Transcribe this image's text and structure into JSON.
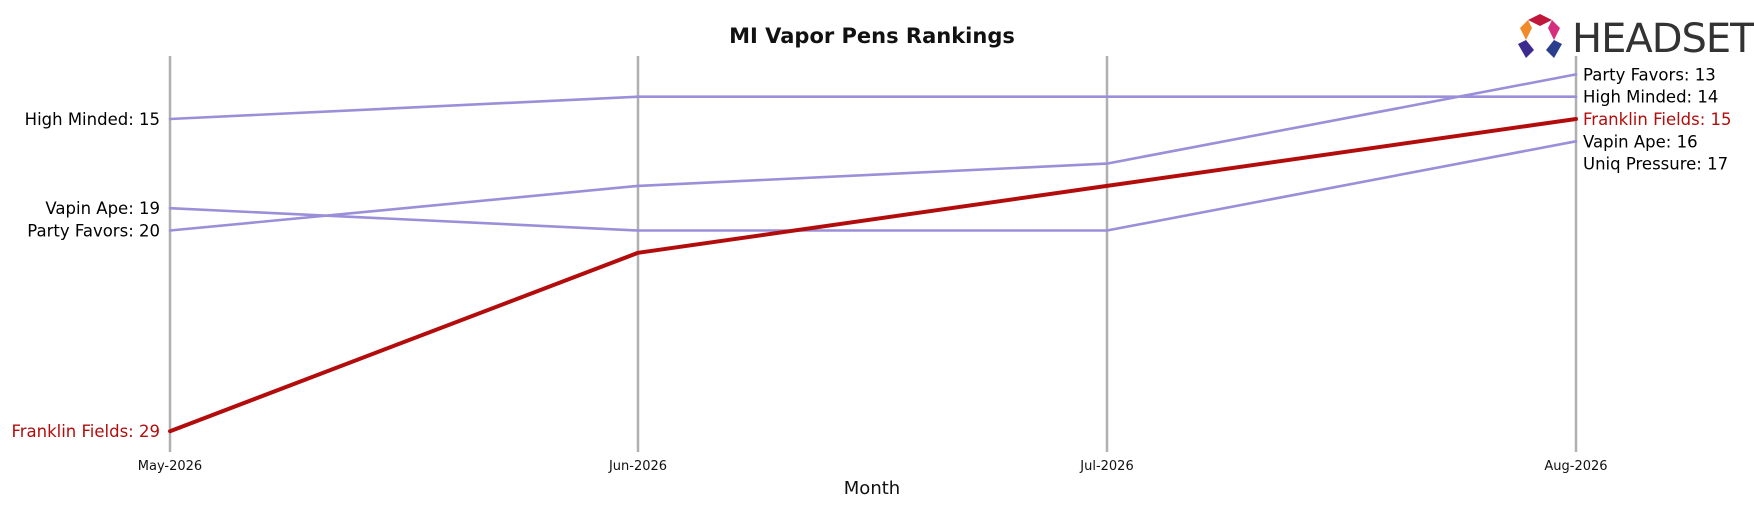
{
  "chart_data": {
    "type": "line",
    "title": "MI Vapor Pens Rankings",
    "xlabel": "Month",
    "ylabel": "",
    "categories": [
      "May-2026",
      "Jun-2026",
      "Jul-2026",
      "Aug-2026"
    ],
    "y_inverted": true,
    "ylim": [
      12,
      29.5
    ],
    "grid": "vertical lines at each month",
    "series": [
      {
        "name": "High Minded",
        "values": [
          15,
          14,
          14,
          14
        ],
        "color": "#9b8fd9",
        "highlight": false
      },
      {
        "name": "Vapin Ape",
        "values": [
          19,
          20,
          20,
          16
        ],
        "color": "#9b8fd9",
        "highlight": false
      },
      {
        "name": "Party Favors",
        "values": [
          20,
          18,
          17,
          13
        ],
        "color": "#9b8fd9",
        "highlight": false
      },
      {
        "name": "Franklin Fields",
        "values": [
          29,
          21,
          18,
          15
        ],
        "color": "#b30c0c",
        "highlight": true
      },
      {
        "name": "Uniq Pressure",
        "values": [
          null,
          null,
          null,
          17
        ],
        "color": "#9b8fd9",
        "highlight": false
      }
    ],
    "start_labels": [
      {
        "text": "High Minded: 15",
        "value": 15,
        "color": "#000000"
      },
      {
        "text": "Vapin Ape: 19",
        "value": 19,
        "color": "#000000"
      },
      {
        "text": "Party Favors: 20",
        "value": 20,
        "color": "#000000"
      },
      {
        "text": "Franklin Fields: 29",
        "value": 29,
        "color": "#b30c0c"
      }
    ],
    "end_labels": [
      {
        "text": "Party Favors: 13",
        "value": 13,
        "color": "#000000"
      },
      {
        "text": "High Minded: 14",
        "value": 14,
        "color": "#000000"
      },
      {
        "text": "Franklin Fields: 15",
        "value": 15,
        "color": "#b30c0c"
      },
      {
        "text": "Vapin Ape: 16",
        "value": 16,
        "color": "#000000"
      },
      {
        "text": "Uniq Pressure: 17",
        "value": 17,
        "color": "#000000"
      }
    ]
  },
  "logo": {
    "text": "HEADSET"
  },
  "colors": {
    "grid": "#b0b0b0",
    "series_default": "#9b8fd9",
    "highlight": "#b30c0c",
    "logo_text": "#333333"
  }
}
